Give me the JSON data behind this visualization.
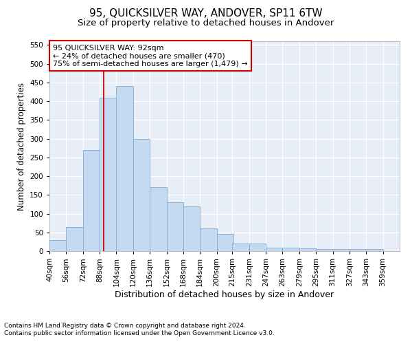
{
  "title": "95, QUICKSILVER WAY, ANDOVER, SP11 6TW",
  "subtitle": "Size of property relative to detached houses in Andover",
  "xlabel": "Distribution of detached houses by size in Andover",
  "ylabel": "Number of detached properties",
  "footnote1": "Contains HM Land Registry data © Crown copyright and database right 2024.",
  "footnote2": "Contains public sector information licensed under the Open Government Licence v3.0.",
  "property_label": "95 QUICKSILVER WAY: 92sqm",
  "annotation_line1": "← 24% of detached houses are smaller (470)",
  "annotation_line2": "75% of semi-detached houses are larger (1,479) →",
  "bar_left_edges": [
    40,
    56,
    72,
    88,
    104,
    120,
    136,
    152,
    168,
    184,
    200,
    215,
    231,
    247,
    263,
    279,
    295,
    311,
    327,
    343
  ],
  "bar_heights": [
    30,
    65,
    270,
    410,
    440,
    300,
    170,
    130,
    120,
    60,
    45,
    20,
    20,
    10,
    10,
    7,
    5,
    5,
    5,
    5
  ],
  "bin_width": 16,
  "bar_color": "#c5d9f0",
  "bar_edge_color": "#7aadd4",
  "vline_color": "#cc0000",
  "vline_x": 92,
  "annotation_box_color": "#cc0000",
  "plot_bg_color": "#e8eef8",
  "grid_color": "#ffffff",
  "ylim": [
    0,
    560
  ],
  "yticks": [
    0,
    50,
    100,
    150,
    200,
    250,
    300,
    350,
    400,
    450,
    500,
    550
  ],
  "xlim": [
    40,
    375
  ],
  "xtick_labels": [
    "40sqm",
    "56sqm",
    "72sqm",
    "88sqm",
    "104sqm",
    "120sqm",
    "136sqm",
    "152sqm",
    "168sqm",
    "184sqm",
    "200sqm",
    "215sqm",
    "231sqm",
    "247sqm",
    "263sqm",
    "279sqm",
    "295sqm",
    "311sqm",
    "327sqm",
    "343sqm",
    "359sqm"
  ],
  "xtick_positions": [
    40,
    56,
    72,
    88,
    104,
    120,
    136,
    152,
    168,
    184,
    200,
    215,
    231,
    247,
    263,
    279,
    295,
    311,
    327,
    343,
    359
  ],
  "title_fontsize": 11,
  "subtitle_fontsize": 9.5,
  "xlabel_fontsize": 9,
  "ylabel_fontsize": 8.5,
  "tick_fontsize": 7.5,
  "annotation_fontsize": 8,
  "footnote_fontsize": 6.5
}
